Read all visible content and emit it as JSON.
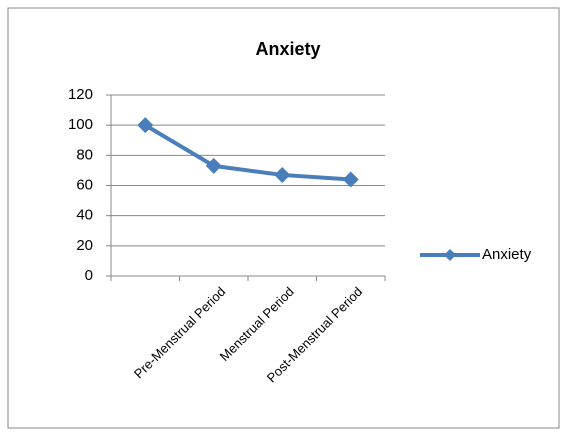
{
  "chart_data": {
    "type": "line",
    "title": "Anxiety",
    "categories": [
      null,
      "Pre-Menstrual Period",
      "Menstrual Period",
      "Post-Menstrual Period"
    ],
    "series": [
      {
        "name": "Anxiety",
        "color": "#4a7ebb",
        "values": [
          100,
          73,
          67,
          64
        ]
      }
    ],
    "ylim": [
      0,
      120
    ],
    "yticks": [
      0,
      20,
      40,
      60,
      80,
      100,
      120
    ],
    "grid": true,
    "legend": "right"
  }
}
